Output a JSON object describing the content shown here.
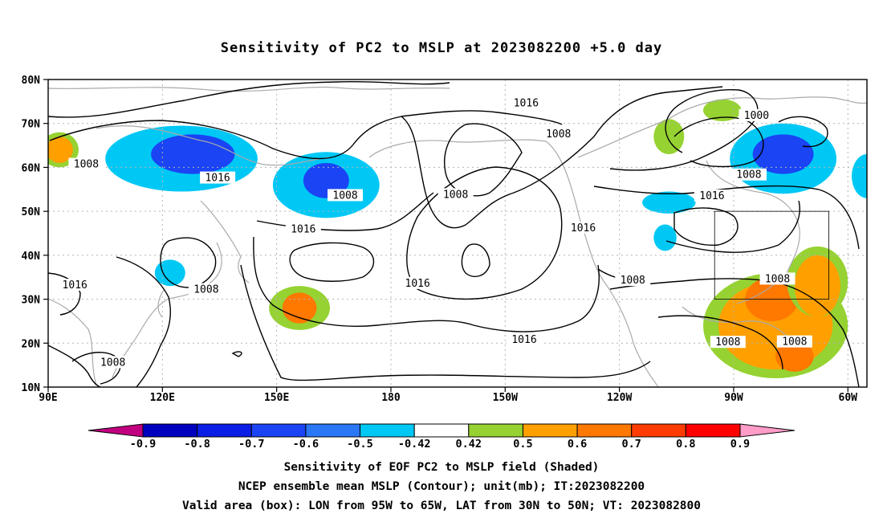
{
  "title": "Sensitivity of PC2 to MSLP at 2023082200 +5.0 day",
  "axes": {
    "lat_labels": [
      "80N",
      "70N",
      "60N",
      "50N",
      "40N",
      "30N",
      "20N",
      "10N"
    ],
    "lon_labels": [
      "90E",
      "120E",
      "150E",
      "180",
      "150W",
      "120W",
      "90W",
      "60W"
    ]
  },
  "contour_labels": [
    {
      "text": "1016",
      "lon": -144.5,
      "lat": 74.6
    },
    {
      "text": "1008",
      "lon": -136,
      "lat": 67.6
    },
    {
      "text": "1000",
      "lon": -84,
      "lat": 71.8
    },
    {
      "text": "1008",
      "lon": -86,
      "lat": 58.3
    },
    {
      "text": "1016",
      "lon": -95.7,
      "lat": 53.5
    },
    {
      "text": "1008",
      "lon": 100,
      "lat": 60.7
    },
    {
      "text": "1016",
      "lon": 134.5,
      "lat": 57.6
    },
    {
      "text": "1008",
      "lon": 168,
      "lat": 53.6
    },
    {
      "text": "1008",
      "lon": -163,
      "lat": 53.8
    },
    {
      "text": "1016",
      "lon": 157,
      "lat": 45.9
    },
    {
      "text": "1016",
      "lon": -129.5,
      "lat": 46.2
    },
    {
      "text": "1016",
      "lon": -173,
      "lat": 33.6
    },
    {
      "text": "1008",
      "lon": -116.5,
      "lat": 34.3
    },
    {
      "text": "1008",
      "lon": -78.5,
      "lat": 34.6
    },
    {
      "text": "1016",
      "lon": 97,
      "lat": 33.2
    },
    {
      "text": "1008",
      "lon": 131.5,
      "lat": 32.2
    },
    {
      "text": "1016",
      "lon": -145,
      "lat": 20.8
    },
    {
      "text": "1008",
      "lon": -91.5,
      "lat": 20.2
    },
    {
      "text": "1008",
      "lon": -74,
      "lat": 20.3
    },
    {
      "text": "1008",
      "lon": 107,
      "lat": 15.6
    }
  ],
  "colorbar": {
    "tick_labels": [
      "-0.9",
      "-0.8",
      "-0.7",
      "-0.6",
      "-0.5",
      "-0.42",
      "0.42",
      "0.5",
      "0.6",
      "0.7",
      "0.8",
      "0.9"
    ],
    "colors": [
      "#c1007f",
      "#0000bf",
      "#0a1ee6",
      "#1a44f4",
      "#2a78f5",
      "#00c8f5",
      "#ffffff",
      "#96d232",
      "#ffa000",
      "#ff7800",
      "#ff3c00",
      "#ff0000",
      "#ff9cc8"
    ]
  },
  "shading": [
    {
      "color": "#00c8f5",
      "lon": 125,
      "lat": 62,
      "rx": 20,
      "ry": 7.5
    },
    {
      "color": "#1a44f4",
      "lon": 128,
      "lat": 63,
      "rx": 11,
      "ry": 4.5
    },
    {
      "color": "#00c8f5",
      "lon": 163,
      "lat": 56,
      "rx": 14,
      "ry": 7.5
    },
    {
      "color": "#1a44f4",
      "lon": 163,
      "lat": 57,
      "rx": 6,
      "ry": 4
    },
    {
      "color": "#00c8f5",
      "lon": -77,
      "lat": 62,
      "rx": 14,
      "ry": 8
    },
    {
      "color": "#1a44f4",
      "lon": -77,
      "lat": 63,
      "rx": 8,
      "ry": 4.5
    },
    {
      "color": "#00c8f5",
      "lon": -55,
      "lat": 58,
      "rx": 4,
      "ry": 5
    },
    {
      "color": "#00c8f5",
      "lon": -107,
      "lat": 52,
      "rx": 7,
      "ry": 2.5
    },
    {
      "color": "#00c8f5",
      "lon": -108,
      "lat": 44,
      "rx": 3,
      "ry": 3
    },
    {
      "color": "#00c8f5",
      "lon": 122,
      "lat": 36,
      "rx": 4,
      "ry": 3
    },
    {
      "color": "#96d232",
      "lon": -107,
      "lat": 67,
      "rx": 4,
      "ry": 4
    },
    {
      "color": "#96d232",
      "lon": -93,
      "lat": 73,
      "rx": 5,
      "ry": 2.5
    },
    {
      "color": "#96d232",
      "lon": 93,
      "lat": 64,
      "rx": 5,
      "ry": 4
    },
    {
      "color": "#ffa000",
      "lon": 93,
      "lat": 64,
      "rx": 3.5,
      "ry": 3
    },
    {
      "color": "#96d232",
      "lon": 156,
      "lat": 28,
      "rx": 8,
      "ry": 5
    },
    {
      "color": "#ff7800",
      "lon": 156,
      "lat": 28,
      "rx": 4.5,
      "ry": 3.5
    },
    {
      "color": "#96d232",
      "lon": -79,
      "lat": 24,
      "rx": 19,
      "ry": 12
    },
    {
      "color": "#ffa000",
      "lon": -79,
      "lat": 24,
      "rx": 15,
      "ry": 10
    },
    {
      "color": "#ff7800",
      "lon": -80,
      "lat": 30,
      "rx": 7,
      "ry": 5
    },
    {
      "color": "#ff7800",
      "lon": -74,
      "lat": 17,
      "rx": 5,
      "ry": 3.5
    },
    {
      "color": "#96d232",
      "lon": -68,
      "lat": 34,
      "rx": 8,
      "ry": 8
    },
    {
      "color": "#ffa000",
      "lon": -68,
      "lat": 33,
      "rx": 6,
      "ry": 7
    }
  ],
  "valid_box": {
    "lon_min": -95,
    "lon_max": -65,
    "lat_min": 30,
    "lat_max": 50
  },
  "caption": {
    "line1": "Sensitivity of EOF PC2 to MSLP field (Shaded)",
    "line2": "NCEP ensemble mean MSLP (Contour); unit(mb); IT:2023082200",
    "line3": "Valid area (box): LON from 95W to 65W, LAT from 30N to 50N; VT: 2023082800"
  }
}
